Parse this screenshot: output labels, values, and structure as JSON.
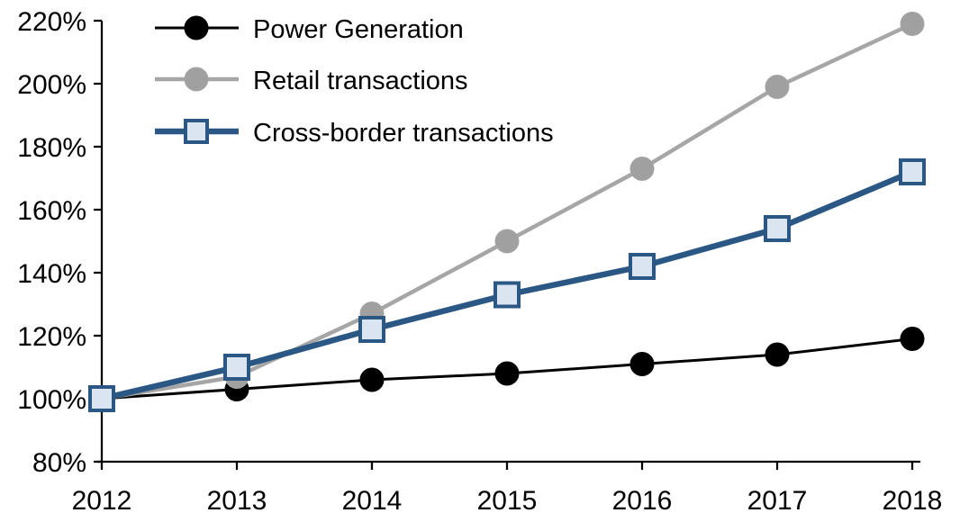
{
  "chart_data": {
    "type": "line",
    "title": "",
    "xlabel": "",
    "ylabel": "",
    "categories": [
      "2012",
      "2013",
      "2014",
      "2015",
      "2016",
      "2017",
      "2018"
    ],
    "series": [
      {
        "name": "Power Generation",
        "values": [
          100,
          103,
          106,
          108,
          111,
          114,
          119
        ],
        "color": "#000000",
        "marker": "circle",
        "marker_fill": "#000000",
        "line_width": 3
      },
      {
        "name": "Retail transactions",
        "values": [
          100,
          107,
          127,
          150,
          173,
          199,
          219
        ],
        "color": "#a6a6a6",
        "marker": "circle",
        "marker_fill": "#a0a0a0",
        "line_width": 4.5
      },
      {
        "name": "Cross-border transactions",
        "values": [
          100,
          110,
          122,
          133,
          142,
          154,
          172
        ],
        "color": "#2a5783",
        "marker": "square",
        "marker_fill": "#dbe5f1",
        "line_width": 6.5
      }
    ],
    "ylim": [
      80,
      220
    ],
    "ytick_step": 20,
    "ytick_labels": [
      "80%",
      "100%",
      "120%",
      "140%",
      "160%",
      "180%",
      "200%",
      "220%"
    ],
    "ytick_format": "percent",
    "grid": false,
    "legend_position": "top-left",
    "background": "#ffffff",
    "axis_color": "#000000"
  }
}
